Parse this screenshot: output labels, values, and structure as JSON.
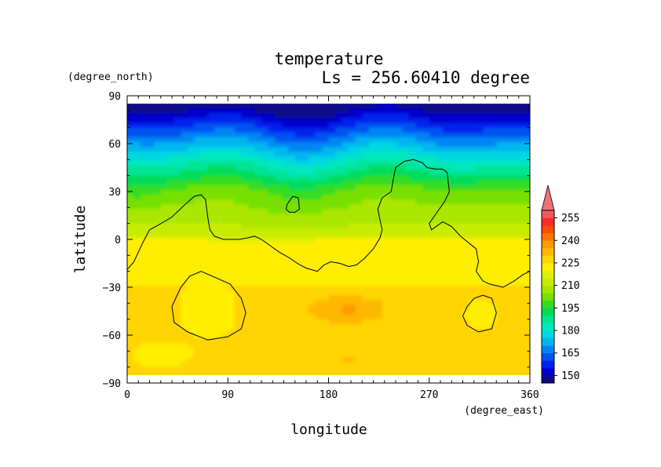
{
  "chart_data": {
    "type": "heatmap",
    "title": "temperature",
    "subtitle": "Ls = 256.60410 degree",
    "xlabel": "longitude",
    "ylabel": "latitude",
    "x_units": "(degree_east)",
    "y_units": "(degree_north)",
    "xlim": [
      0,
      360
    ],
    "ylim": [
      -90,
      90
    ],
    "data_lat_range": [
      -85,
      85
    ],
    "x_ticks": [
      0,
      90,
      180,
      270,
      360
    ],
    "y_ticks": [
      90,
      60,
      30,
      0,
      -30,
      -60,
      -90
    ],
    "x_tick_labels": [
      "0",
      "90",
      "180",
      "270",
      "360"
    ],
    "y_tick_labels": [
      "90",
      "60",
      "30",
      "0",
      "−30",
      "−60",
      "−90"
    ],
    "colorbar": {
      "tick_labels": [
        "150",
        "165",
        "180",
        "195",
        "210",
        "225",
        "240",
        "255"
      ],
      "ticks": [
        150,
        165,
        180,
        195,
        210,
        225,
        240,
        255
      ],
      "levels": [
        145,
        150,
        155,
        160,
        165,
        170,
        175,
        180,
        185,
        190,
        195,
        200,
        205,
        210,
        215,
        220,
        225,
        230,
        235,
        240,
        245,
        250,
        255,
        260
      ],
      "colors": [
        "#0c0a86",
        "#0000cd",
        "#0022ee",
        "#0052f2",
        "#0086f4",
        "#00b6f0",
        "#00d8e0",
        "#00e8bc",
        "#00e494",
        "#00dc5a",
        "#33dd22",
        "#77e000",
        "#aae600",
        "#c8ec00",
        "#e0f000",
        "#ffee00",
        "#ffd400",
        "#ffb800",
        "#ff9a00",
        "#ff7400",
        "#ff4a00",
        "#ff2a2a",
        "#f05a5a"
      ],
      "overflow_color": "#f07272"
    },
    "surface_contour": {
      "long_line": [
        [
          0,
          -19
        ],
        [
          6,
          -14
        ],
        [
          14,
          -2
        ],
        [
          20,
          6
        ],
        [
          28,
          9
        ],
        [
          40,
          14
        ],
        [
          52,
          22
        ],
        [
          60,
          27
        ],
        [
          66,
          28
        ],
        [
          70,
          25
        ],
        [
          72,
          14
        ],
        [
          74,
          6
        ],
        [
          78,
          2
        ],
        [
          86,
          0
        ],
        [
          100,
          0
        ],
        [
          108,
          1
        ],
        [
          114,
          2
        ],
        [
          120,
          0
        ],
        [
          128,
          -4
        ],
        [
          136,
          -8
        ],
        [
          146,
          -12
        ],
        [
          152,
          -15
        ],
        [
          160,
          -18
        ],
        [
          170,
          -20
        ],
        [
          176,
          -16
        ],
        [
          182,
          -14
        ],
        [
          190,
          -15
        ],
        [
          198,
          -17
        ],
        [
          205,
          -16
        ],
        [
          212,
          -12
        ],
        [
          220,
          -6
        ],
        [
          226,
          1
        ],
        [
          228,
          6
        ],
        [
          226,
          12
        ],
        [
          224,
          19
        ],
        [
          228,
          26
        ],
        [
          236,
          30
        ],
        [
          238,
          38
        ],
        [
          240,
          45
        ],
        [
          248,
          49
        ],
        [
          256,
          50
        ],
        [
          264,
          48
        ],
        [
          268,
          45
        ],
        [
          276,
          44
        ],
        [
          282,
          44
        ],
        [
          286,
          42
        ],
        [
          288,
          30
        ],
        [
          284,
          24
        ],
        [
          276,
          16
        ],
        [
          270,
          10
        ],
        [
          272,
          6
        ],
        [
          282,
          11
        ],
        [
          290,
          8
        ],
        [
          298,
          2
        ],
        [
          312,
          -6
        ],
        [
          314,
          -14
        ],
        [
          312,
          -20
        ],
        [
          318,
          -26
        ],
        [
          324,
          -28
        ],
        [
          330,
          -29
        ],
        [
          336,
          -30
        ],
        [
          346,
          -26
        ],
        [
          354,
          -22
        ],
        [
          360,
          -20
        ]
      ],
      "loops": [
        [
          [
            143,
            22
          ],
          [
            148,
            27
          ],
          [
            153,
            26
          ],
          [
            154,
            19
          ],
          [
            150,
            17
          ],
          [
            145,
            17
          ],
          [
            142,
            19
          ]
        ],
        [
          [
            40,
            -42
          ],
          [
            48,
            -30
          ],
          [
            56,
            -23
          ],
          [
            66,
            -20
          ],
          [
            76,
            -23
          ],
          [
            92,
            -28
          ],
          [
            102,
            -37
          ],
          [
            106,
            -46
          ],
          [
            102,
            -56
          ],
          [
            90,
            -61
          ],
          [
            72,
            -63
          ],
          [
            54,
            -58
          ],
          [
            42,
            -52
          ]
        ],
        [
          [
            304,
            -42
          ],
          [
            310,
            -37
          ],
          [
            318,
            -35
          ],
          [
            326,
            -37
          ],
          [
            330,
            -46
          ],
          [
            326,
            -56
          ],
          [
            314,
            -58
          ],
          [
            304,
            -54
          ],
          [
            300,
            -48
          ]
        ]
      ]
    }
  }
}
